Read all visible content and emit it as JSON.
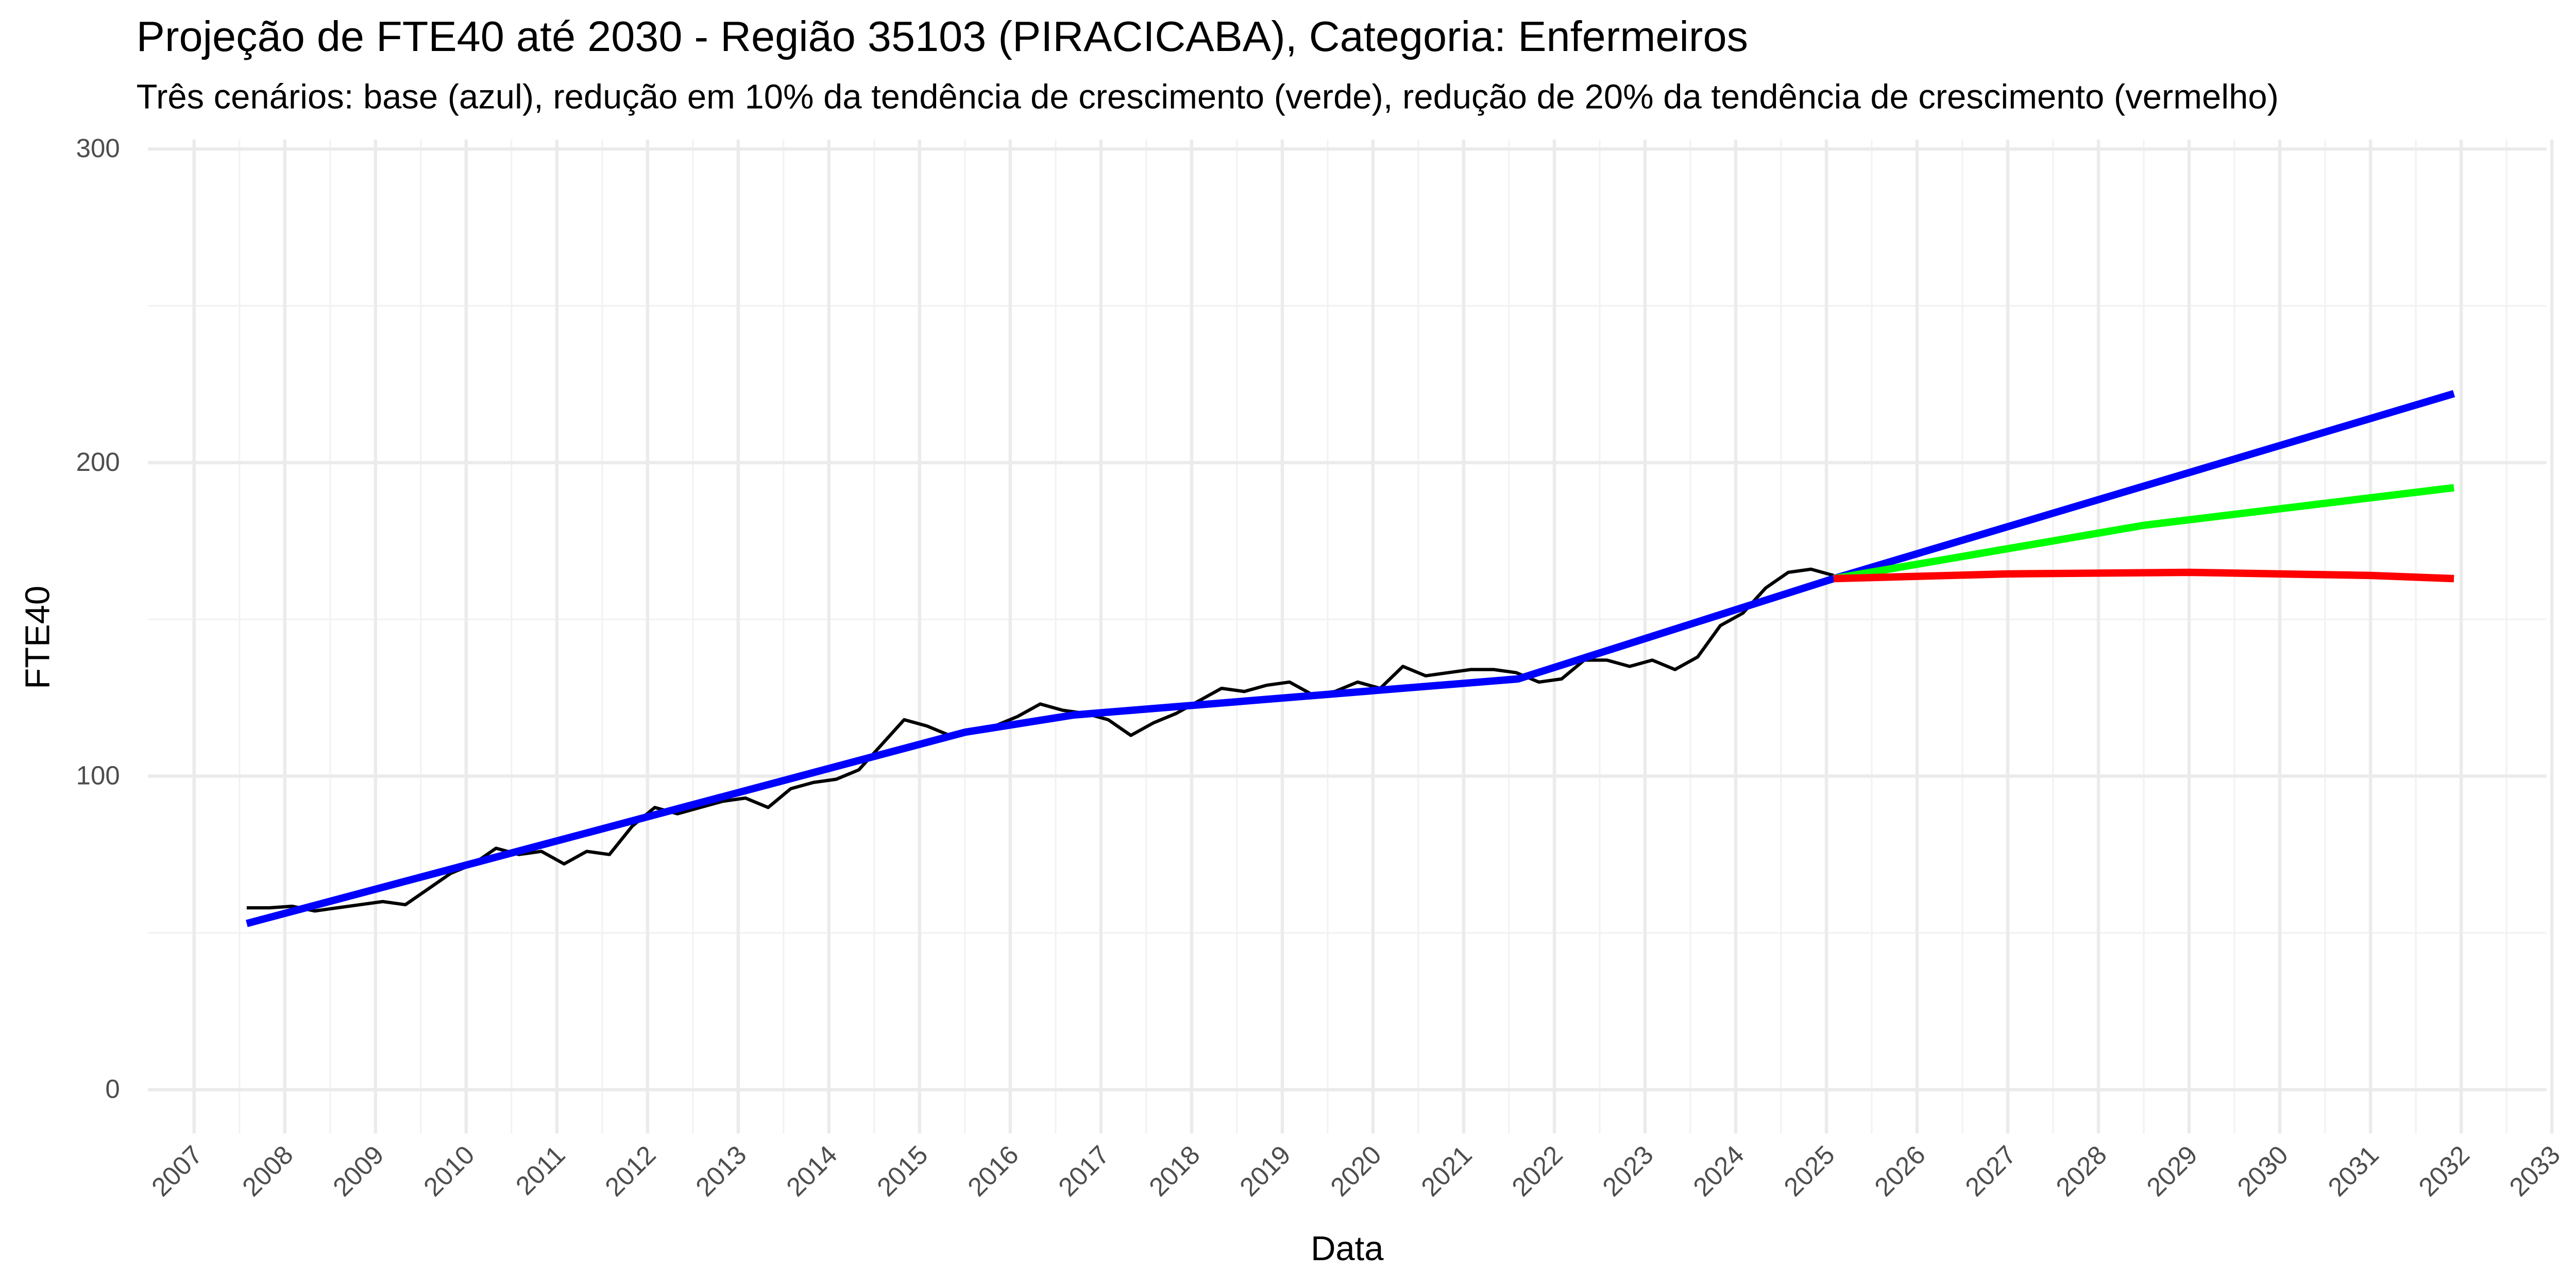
{
  "chart_data": {
    "type": "line",
    "title": "Projeção de FTE40 até 2030 - Região 35103 (PIRACICABA), Categoria: Enfermeiros",
    "subtitle": "Três cenários: base (azul), redução em 10% da tendência de crescimento (verde), redução de 20% da tendência de crescimento (vermelho)",
    "x_label": "Data",
    "y_label": "FTE40",
    "xlim": [
      2006.49,
      2032.94
    ],
    "xticks": [
      2007,
      2008,
      2009,
      2010,
      2011,
      2012,
      2013,
      2014,
      2015,
      2016,
      2017,
      2018,
      2019,
      2020,
      2021,
      2022,
      2023,
      2024,
      2025,
      2026,
      2027,
      2028,
      2029,
      2030,
      2031,
      2032,
      2033
    ],
    "ylim": [
      -14,
      303
    ],
    "yticks": [
      0,
      100,
      200,
      300
    ],
    "grid": true,
    "series": [
      {
        "color": "#000000",
        "width": 2,
        "x": [
          2007.58,
          2007.83,
          2008.08,
          2008.33,
          2008.58,
          2008.83,
          2009.08,
          2009.33,
          2009.58,
          2009.83,
          2010.08,
          2010.33,
          2010.58,
          2010.83,
          2011.08,
          2011.33,
          2011.58,
          2011.83,
          2012.08,
          2012.33,
          2012.58,
          2012.83,
          2013.08,
          2013.33,
          2013.58,
          2013.83,
          2014.08,
          2014.33,
          2014.58,
          2014.83,
          2015.08,
          2015.33,
          2015.58,
          2015.83,
          2016.08,
          2016.33,
          2016.58,
          2016.83,
          2017.08,
          2017.33,
          2017.58,
          2017.83,
          2018.08,
          2018.33,
          2018.58,
          2018.83,
          2019.08,
          2019.33,
          2019.58,
          2019.83,
          2020.08,
          2020.33,
          2020.58,
          2020.83,
          2021.08,
          2021.33,
          2021.58,
          2021.83,
          2022.08,
          2022.33,
          2022.58,
          2022.83,
          2023.08,
          2023.33,
          2023.58,
          2023.83,
          2024.08,
          2024.33,
          2024.58,
          2024.83,
          2025.08
        ],
        "values": [
          58,
          58,
          58.5,
          57,
          58,
          59,
          60,
          59,
          64,
          69,
          72,
          77,
          75,
          76,
          72,
          76,
          75,
          84,
          90,
          88,
          90,
          92,
          93,
          90,
          96,
          98,
          99,
          102,
          110,
          118,
          116,
          113,
          115,
          116,
          119,
          123,
          121,
          120,
          118,
          113,
          117,
          120,
          124,
          128,
          127,
          129,
          130,
          126,
          127,
          130,
          128,
          135,
          132,
          133,
          134,
          134,
          133,
          130,
          131,
          137,
          137,
          135,
          137,
          134,
          138,
          148,
          152,
          160,
          165,
          166,
          164
        ]
      },
      {
        "color": "#0000ff",
        "width": 4.5,
        "x": [
          2007.58,
          2015.5,
          2016.7,
          2021.6,
          2025.08,
          2031.92
        ],
        "values": [
          53,
          114,
          119.5,
          131,
          163,
          222
        ]
      },
      {
        "color": "#00ff00",
        "width": 4.5,
        "x": [
          2025.08,
          2028.5,
          2031.92
        ],
        "values": [
          163,
          180,
          192
        ]
      },
      {
        "color": "#ff0000",
        "width": 4.5,
        "x": [
          2025.08,
          2027,
          2029,
          2031,
          2031.92
        ],
        "values": [
          163,
          164.5,
          165,
          164,
          163
        ]
      }
    ]
  }
}
